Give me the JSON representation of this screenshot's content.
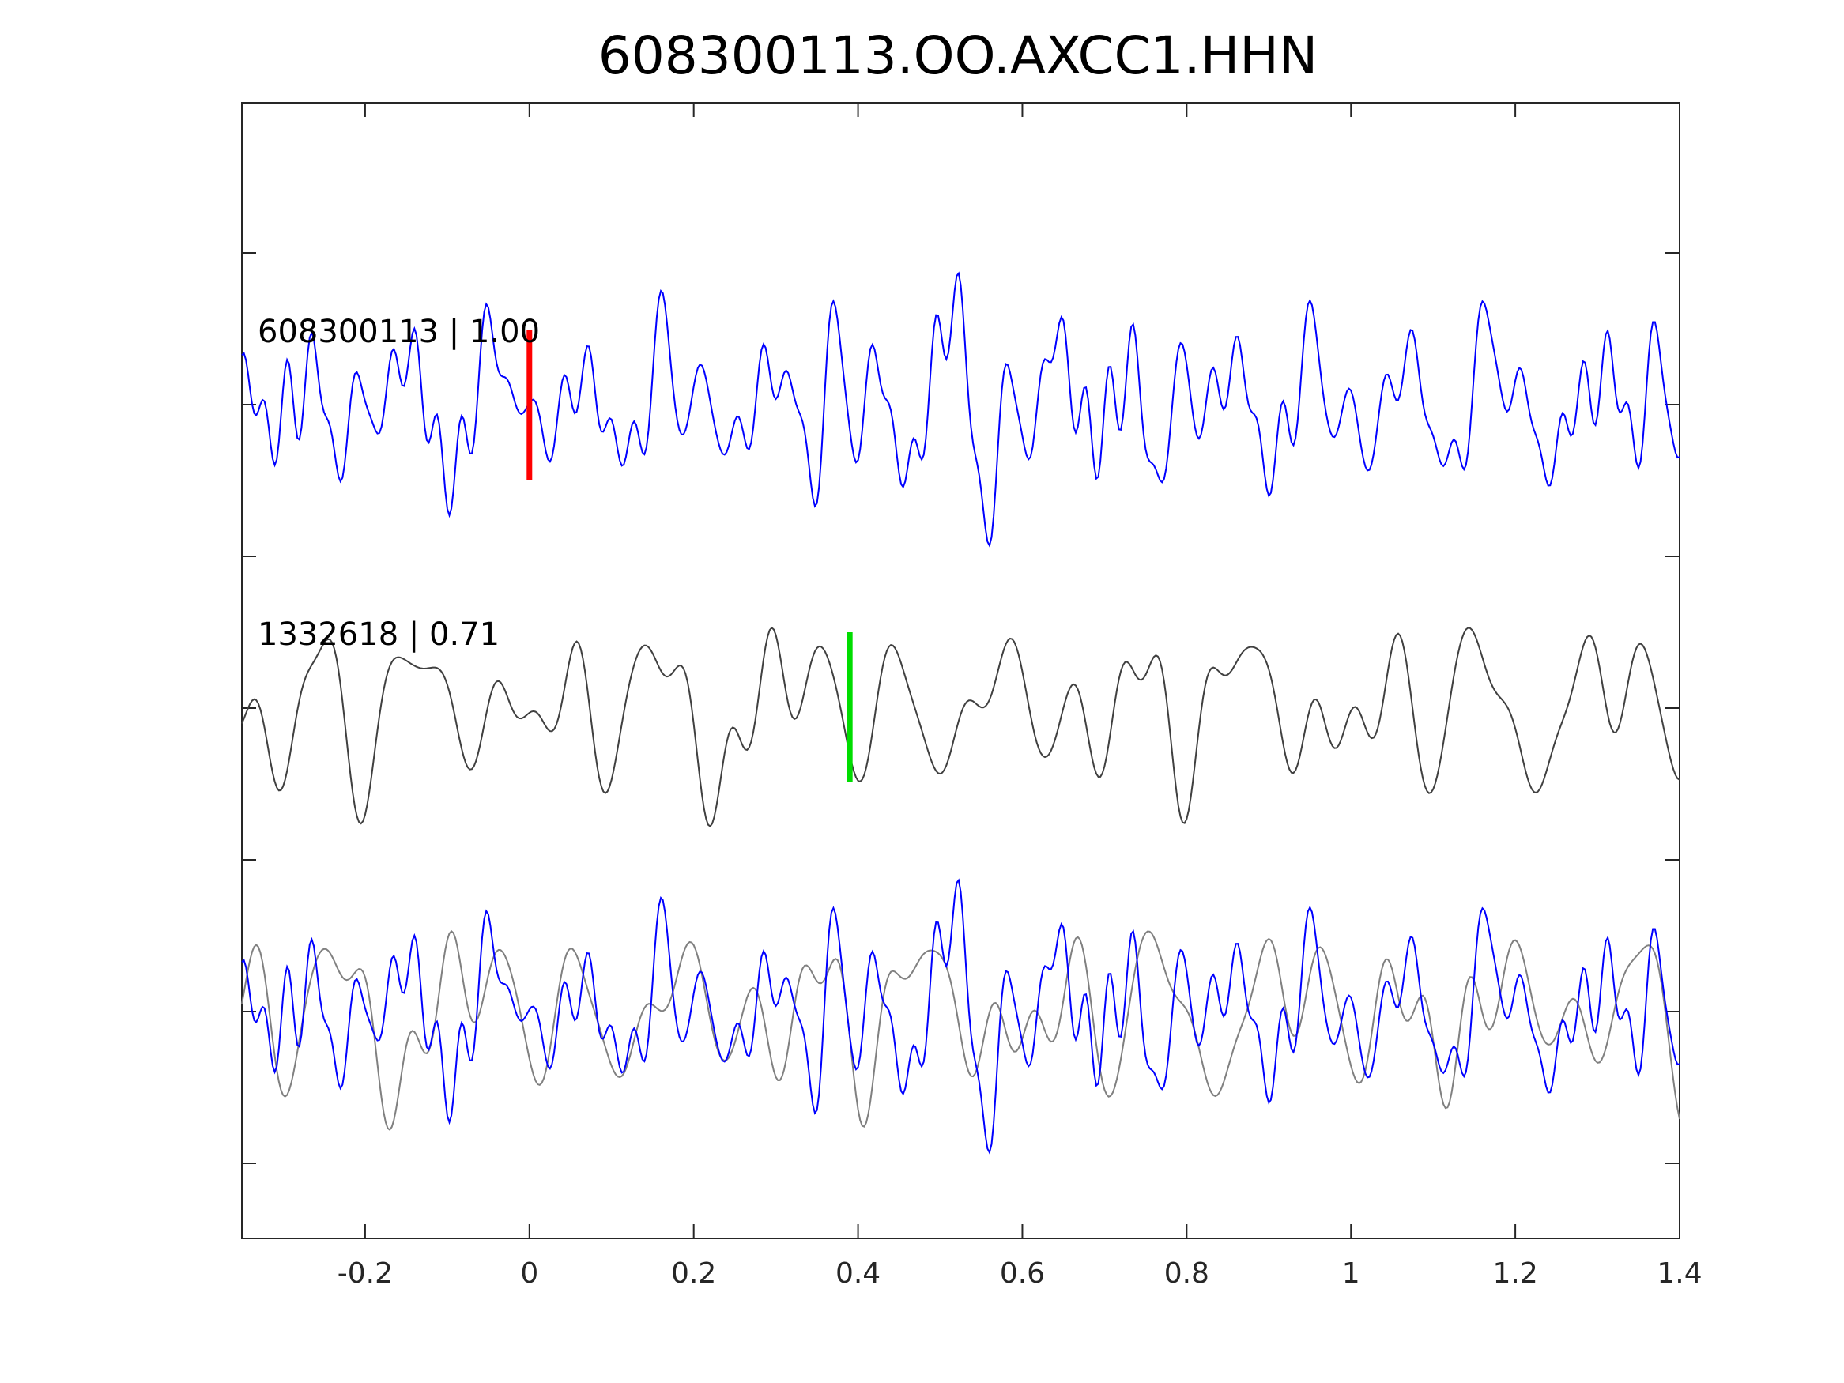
{
  "chart_data": {
    "type": "line",
    "title": "608300113.OO.AXCC1.HHN",
    "xlim": [
      -0.35,
      1.4
    ],
    "x_tick_labels": [
      "-0.2",
      "0",
      "0.2",
      "0.4",
      "0.6",
      "0.8",
      "1",
      "1.2",
      "1.4"
    ],
    "x_tick_values": [
      -0.2,
      0,
      0.2,
      0.4,
      0.6,
      0.8,
      1,
      1.2,
      1.4
    ],
    "y_tick_count": 7,
    "x_axis_label": "",
    "y_axis_label": "",
    "grid": false,
    "series": [
      {
        "label": "608300113 | 1.00",
        "color": "#0000ff",
        "pick_time": 0.0,
        "pick_color": "#ff0000",
        "seed": 11,
        "components": [
          [
            9,
            0.45
          ],
          [
            14,
            0.35
          ],
          [
            19,
            0.3
          ],
          [
            24,
            0.25
          ],
          [
            33,
            0.2
          ],
          [
            38,
            0.18
          ],
          [
            6,
            0.2
          ]
        ]
      },
      {
        "label": "1332618 | 0.71",
        "color": "#404040",
        "pick_time": 0.39,
        "pick_color": "#00dd00",
        "seed": 23,
        "components": [
          [
            7,
            0.45
          ],
          [
            10,
            0.35
          ],
          [
            13,
            0.3
          ],
          [
            17,
            0.25
          ],
          [
            4,
            0.2
          ],
          [
            21,
            0.15
          ]
        ]
      }
    ],
    "overlay": {
      "shift": 0.39,
      "primary_color": "#0000ff",
      "secondary_color": "#808080"
    }
  }
}
